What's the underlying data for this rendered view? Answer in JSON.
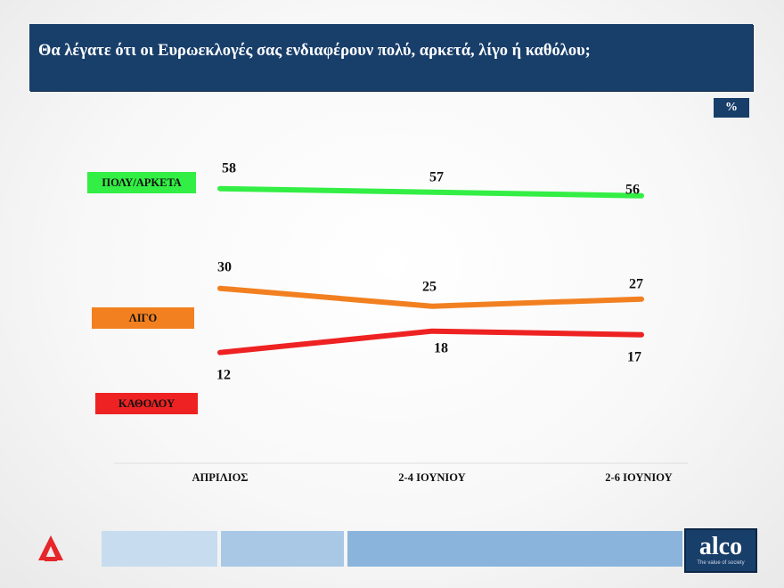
{
  "title": "Θα λέγατε ότι οι Ευρωεκλογές σας ενδιαφέρουν πολύ, αρκετά, λίγο ή καθόλου;",
  "unit_badge": "%",
  "chart_data": {
    "type": "line",
    "title": "Θα λέγατε ότι οι Ευρωεκλογές σας ενδιαφέρουν πολύ, αρκετά, λίγο ή καθόλου;",
    "unit": "%",
    "categories": [
      "ΑΠΡΙΛΙΟΣ",
      "2-4 ΙΟΥΝΙΟΥ",
      "2-6 ΙΟΥΝΙΟΥ"
    ],
    "series": [
      {
        "name": "ΠΟΛΥ/ΑΡΚΕΤΑ",
        "values": [
          58,
          57,
          56
        ],
        "color": "#33ee44"
      },
      {
        "name": "ΛΙΓΟ",
        "values": [
          30,
          25,
          27
        ],
        "color": "#f28020"
      },
      {
        "name": "ΚΑΘΟΛΟΥ",
        "values": [
          12,
          18,
          17
        ],
        "color": "#ee2222"
      }
    ],
    "grid": false,
    "legend": "left"
  },
  "footer": {
    "left_logo_icon": "alpha-tv-logo-icon",
    "brand": "alco",
    "brand_tagline": "The value of society",
    "strip_colors": [
      "#c7dcef",
      "#a9c8e6",
      "#8ab4dc",
      "#6e9fd0"
    ]
  }
}
